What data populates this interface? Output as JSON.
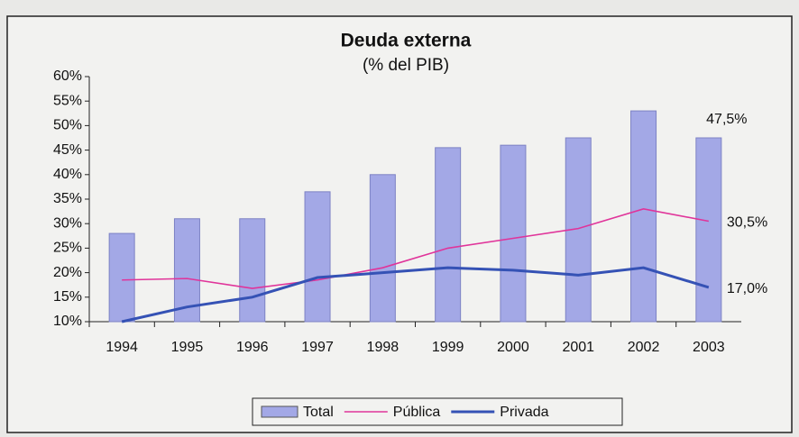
{
  "chart_data": {
    "type": "bar",
    "title": "Deuda externa",
    "subtitle": "(% del PIB)",
    "categories": [
      "1994",
      "1995",
      "1996",
      "1997",
      "1998",
      "1999",
      "2000",
      "2001",
      "2002",
      "2003"
    ],
    "series": [
      {
        "name": "Total",
        "type": "bar",
        "color": "#a3a8e6",
        "values": [
          28,
          31,
          31,
          36.5,
          40,
          45.5,
          46,
          47.5,
          53,
          47.5
        ],
        "value_labels": [
          null,
          null,
          null,
          null,
          null,
          null,
          null,
          null,
          null,
          "47,5%"
        ]
      },
      {
        "name": "Pública",
        "type": "line",
        "color": "#e0349a",
        "values": [
          18.5,
          18.8,
          16.8,
          18.5,
          21,
          25,
          27,
          29,
          33,
          30.5
        ],
        "value_labels": [
          null,
          null,
          null,
          null,
          null,
          null,
          null,
          null,
          null,
          "30,5%"
        ]
      },
      {
        "name": "Privada",
        "type": "line",
        "color": "#3552b5",
        "values": [
          10,
          13,
          15,
          19,
          20,
          21,
          20.5,
          19.5,
          21,
          17
        ],
        "value_labels": [
          null,
          null,
          null,
          null,
          null,
          null,
          null,
          null,
          null,
          "17,0%"
        ]
      }
    ],
    "ylim": [
      10,
      60
    ],
    "yticks": [
      {
        "value": 10,
        "label": "10%"
      },
      {
        "value": 15,
        "label": "15%"
      },
      {
        "value": 20,
        "label": "20%"
      },
      {
        "value": 25,
        "label": "25%"
      },
      {
        "value": 30,
        "label": "30%"
      },
      {
        "value": 35,
        "label": "35%"
      },
      {
        "value": 40,
        "label": "40%"
      },
      {
        "value": 45,
        "label": "45%"
      },
      {
        "value": 50,
        "label": "50%"
      },
      {
        "value": 55,
        "label": "55%"
      },
      {
        "value": 60,
        "label": "60%"
      }
    ],
    "legend": "bottom"
  }
}
